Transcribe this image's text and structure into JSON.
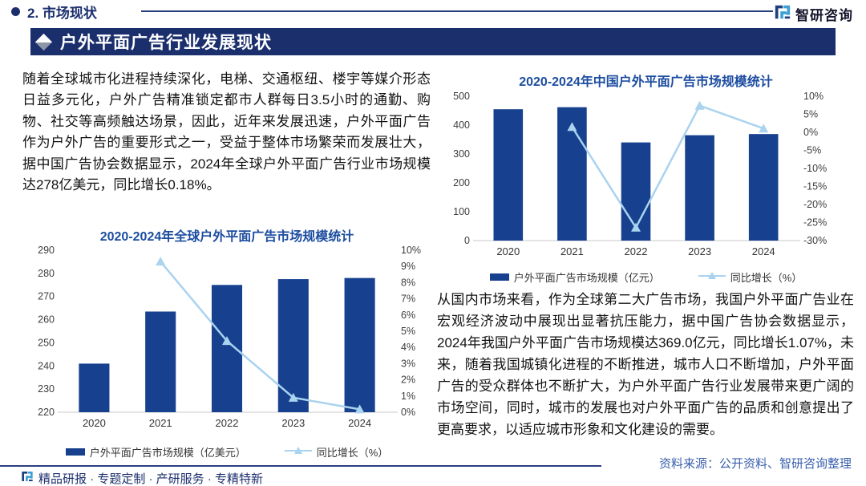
{
  "header": {
    "section_title": "2. 市场现状",
    "brand": "智研咨询"
  },
  "banner": {
    "title": "户外平面广告行业发展现状"
  },
  "left": {
    "paragraph": "随着全球城市化进程持续深化，电梯、交通枢纽、楼宇等媒介形态日益多元化，户外广告精准锁定都市人群每日3.5小时的通勤、购物、社交等高频触达场景，因此，近年来发展迅速，户外平面广告作为户外广告的重要形式之一，受益于整体市场繁荣而发展壮大，据中国广告协会数据显示，2024年全球户外平面广告行业市场规模达278亿美元，同比增长0.18%。"
  },
  "right": {
    "paragraph": "从国内市场来看，作为全球第二大广告市场，我国户外平面广告业在宏观经济波动中展现出显著抗压能力，据中国广告协会数据显示，2024年我国户外平面广告市场规模达369.0亿元，同比增长1.07%，未来，随着我国城镇化进程的不断推进，城市人口不断增加，户外平面广告的受众群体也不断扩大，为户外平面广告行业发展带来更广阔的市场空间，同时，城市的发展也对户外平面广告的品质和创意提出了更高要求，以适应城市形象和文化建设的需要。"
  },
  "footer": {
    "tagline": "精品研报 · 专题定制 · 产研服务 · 专精特新",
    "source": "资料来源：公开资料、智研咨询整理"
  },
  "colors": {
    "navy": "#1b2f6d",
    "chart_title": "#1d4da0",
    "bar": "#17418f",
    "line": "#a9d3ef",
    "source_text": "#3a5fae",
    "axis_line": "#c9c9c9",
    "brand_dark": "#1e3f7f",
    "brand_light": "#3fa0d6"
  },
  "chart_data": [
    {
      "type": "bar",
      "title": "2020-2024年全球户外平面广告市场规模统计",
      "categories": [
        "2020",
        "2021",
        "2022",
        "2023",
        "2024"
      ],
      "series": [
        {
          "name": "户外平面广告市场规模（亿美元）",
          "type": "bar",
          "axis": "left",
          "values": [
            241,
            263.5,
            275,
            277.5,
            278
          ]
        },
        {
          "name": "同比增长（%）",
          "type": "line",
          "axis": "right",
          "values": [
            null,
            9.3,
            4.4,
            0.9,
            0.18
          ]
        }
      ],
      "left_axis": {
        "min": 220,
        "max": 290,
        "step": 10,
        "suffix": ""
      },
      "right_axis": {
        "min": 0,
        "max": 10,
        "step": 1,
        "suffix": "%"
      },
      "legend_position": "bottom",
      "grid": false
    },
    {
      "type": "bar",
      "title": "2020-2024年中国户外平面广告市场规模统计",
      "categories": [
        "2020",
        "2021",
        "2022",
        "2023",
        "2024"
      ],
      "series": [
        {
          "name": "户外平面广告市场规模（亿元）",
          "type": "bar",
          "axis": "left",
          "values": [
            455,
            462,
            340,
            365,
            369
          ]
        },
        {
          "name": "同比增长（%）",
          "type": "line",
          "axis": "right",
          "values": [
            null,
            1.5,
            -26.4,
            7.4,
            1.07
          ]
        }
      ],
      "left_axis": {
        "min": 0,
        "max": 500,
        "step": 100,
        "suffix": ""
      },
      "right_axis": {
        "min": -30,
        "max": 10,
        "step": 5,
        "suffix": "%"
      },
      "legend_position": "bottom",
      "grid": false
    }
  ]
}
